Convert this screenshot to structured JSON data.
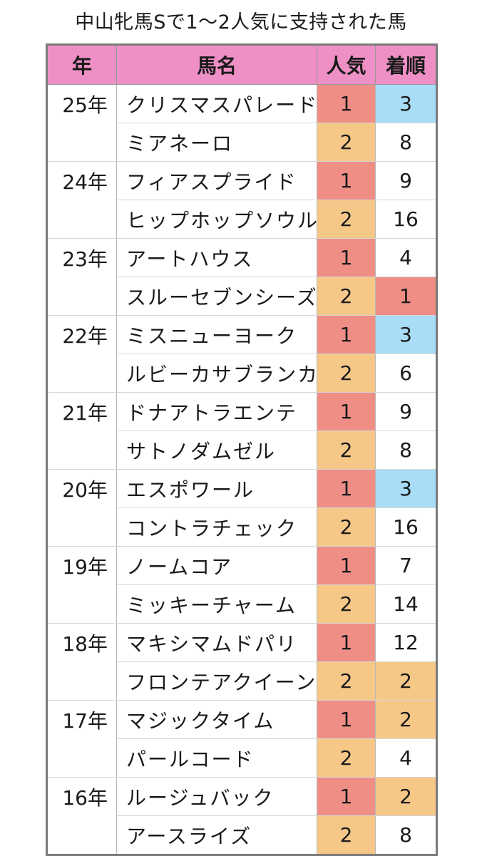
{
  "title": "中山牝馬Sで1〜2人気に支持された馬",
  "headers": {
    "year": "年",
    "name": "馬名",
    "popularity": "人気",
    "finish": "着順"
  },
  "colors": {
    "header": "#ee90c6",
    "popularity_1": "#ee8e85",
    "popularity_2": "#f6c888",
    "finish_1st": "#ee8e85",
    "finish_2nd": "#f6c888",
    "finish_3rd": "#a9dcf6",
    "border": "#7a7a7a"
  },
  "rows": [
    {
      "year": "25年",
      "name": "クリスマスパレード",
      "popularity": "1",
      "finish": "3"
    },
    {
      "year": "",
      "name": "ミアネーロ",
      "popularity": "2",
      "finish": "8"
    },
    {
      "year": "24年",
      "name": "フィアスプライド",
      "popularity": "1",
      "finish": "9"
    },
    {
      "year": "",
      "name": "ヒップホップソウル",
      "popularity": "2",
      "finish": "16"
    },
    {
      "year": "23年",
      "name": "アートハウス",
      "popularity": "1",
      "finish": "4"
    },
    {
      "year": "",
      "name": "スルーセブンシーズ",
      "popularity": "2",
      "finish": "1"
    },
    {
      "year": "22年",
      "name": "ミスニューヨーク",
      "popularity": "1",
      "finish": "3"
    },
    {
      "year": "",
      "name": "ルビーカサブランカ",
      "popularity": "2",
      "finish": "6"
    },
    {
      "year": "21年",
      "name": "ドナアトラエンテ",
      "popularity": "1",
      "finish": "9"
    },
    {
      "year": "",
      "name": "サトノダムゼル",
      "popularity": "2",
      "finish": "8"
    },
    {
      "year": "20年",
      "name": "エスポワール",
      "popularity": "1",
      "finish": "3"
    },
    {
      "year": "",
      "name": "コントラチェック",
      "popularity": "2",
      "finish": "16"
    },
    {
      "year": "19年",
      "name": "ノームコア",
      "popularity": "1",
      "finish": "7"
    },
    {
      "year": "",
      "name": "ミッキーチャーム",
      "popularity": "2",
      "finish": "14"
    },
    {
      "year": "18年",
      "name": "マキシマムドパリ",
      "popularity": "1",
      "finish": "12"
    },
    {
      "year": "",
      "name": "フロンテアクイーン",
      "popularity": "2",
      "finish": "2"
    },
    {
      "year": "17年",
      "name": "マジックタイム",
      "popularity": "1",
      "finish": "2"
    },
    {
      "year": "",
      "name": "パールコード",
      "popularity": "2",
      "finish": "4"
    },
    {
      "year": "16年",
      "name": "ルージュバック",
      "popularity": "1",
      "finish": "2"
    },
    {
      "year": "",
      "name": "アースライズ",
      "popularity": "2",
      "finish": "8"
    }
  ]
}
